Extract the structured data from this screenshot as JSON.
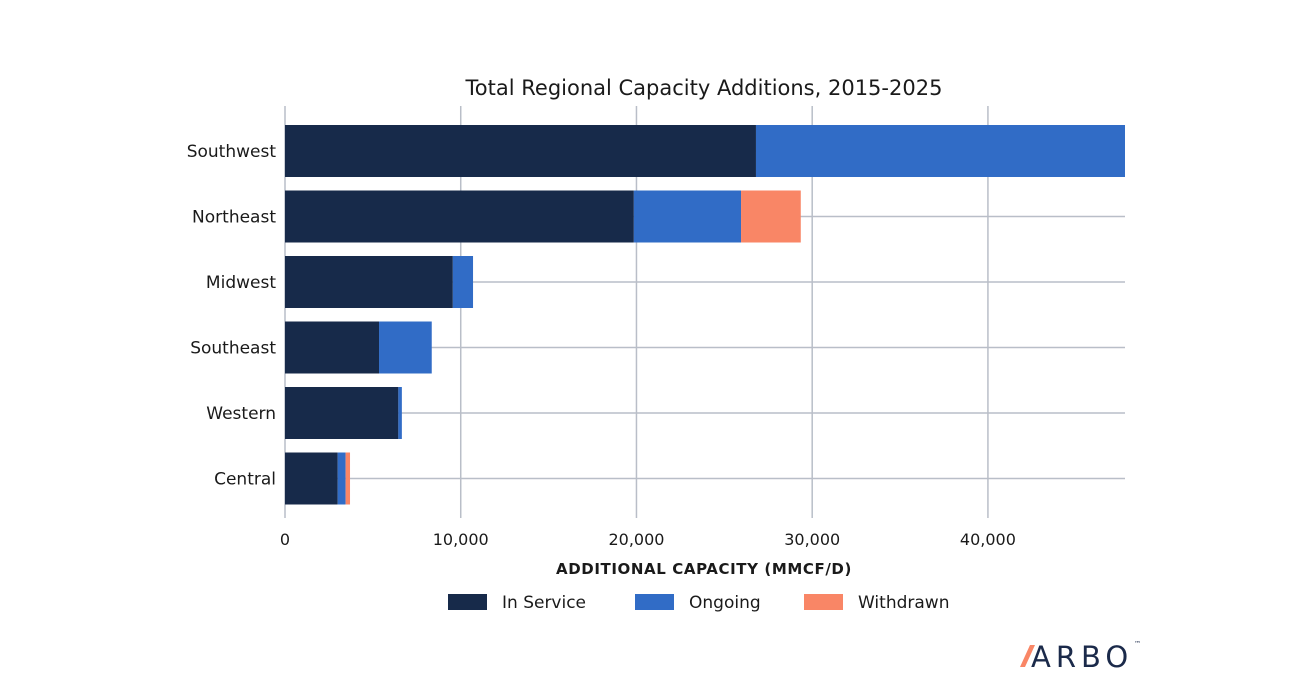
{
  "colors": {
    "in_service": "#172a4a",
    "ongoing": "#316cc6",
    "withdrawn": "#f98666",
    "grid": "#b9bec8"
  },
  "chart_data": {
    "type": "bar",
    "orientation": "horizontal",
    "stacked": true,
    "title": "Total Regional Capacity Additions, 2015-2025",
    "xlabel": "ADDITIONAL CAPACITY (MMCF/D)",
    "ylabel": "",
    "xlim": [
      0,
      47800
    ],
    "xticks": [
      0,
      10000,
      20000,
      30000,
      40000
    ],
    "xtick_labels": [
      "0",
      "10,000",
      "20,000",
      "30,000",
      "40,000"
    ],
    "grid": true,
    "legend_position": "bottom",
    "categories": [
      "Southwest",
      "Northeast",
      "Midwest",
      "Southeast",
      "Western",
      "Central"
    ],
    "series": [
      {
        "name": "In Service",
        "color_key": "in_service",
        "values": [
          26800,
          19850,
          9550,
          5350,
          6450,
          3000
        ]
      },
      {
        "name": "Ongoing",
        "color_key": "ongoing",
        "values": [
          21000,
          6100,
          1150,
          3000,
          200,
          450
        ]
      },
      {
        "name": "Withdrawn",
        "color_key": "withdrawn",
        "values": [
          0,
          3400,
          0,
          0,
          0,
          250
        ]
      }
    ]
  },
  "logo": {
    "text": "ARBO",
    "tm": "™"
  }
}
